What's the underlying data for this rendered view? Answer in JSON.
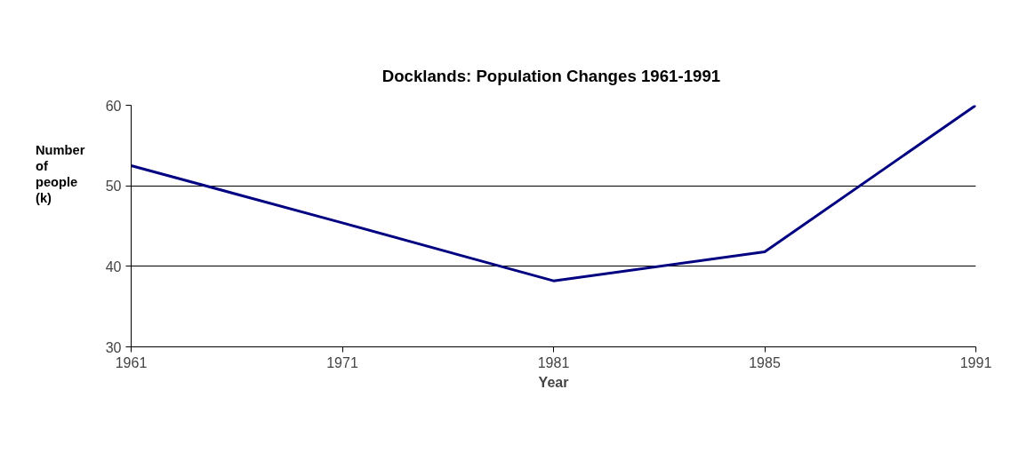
{
  "chart_data": {
    "type": "line",
    "title": "Docklands:  Population Changes 1961-1991",
    "xlabel": "Year",
    "ylabel": "Number of people (k)",
    "categories": [
      "1961",
      "1971",
      "1981",
      "1985",
      "1991"
    ],
    "series": [
      {
        "color": "#000080",
        "values": [
          52.5,
          45.4,
          38.2,
          41.8,
          60
        ]
      }
    ],
    "ylim": [
      30,
      60
    ],
    "yticks": [
      30,
      40,
      50,
      60
    ],
    "grid": "y",
    "marker": "none",
    "line_style": "solid"
  }
}
